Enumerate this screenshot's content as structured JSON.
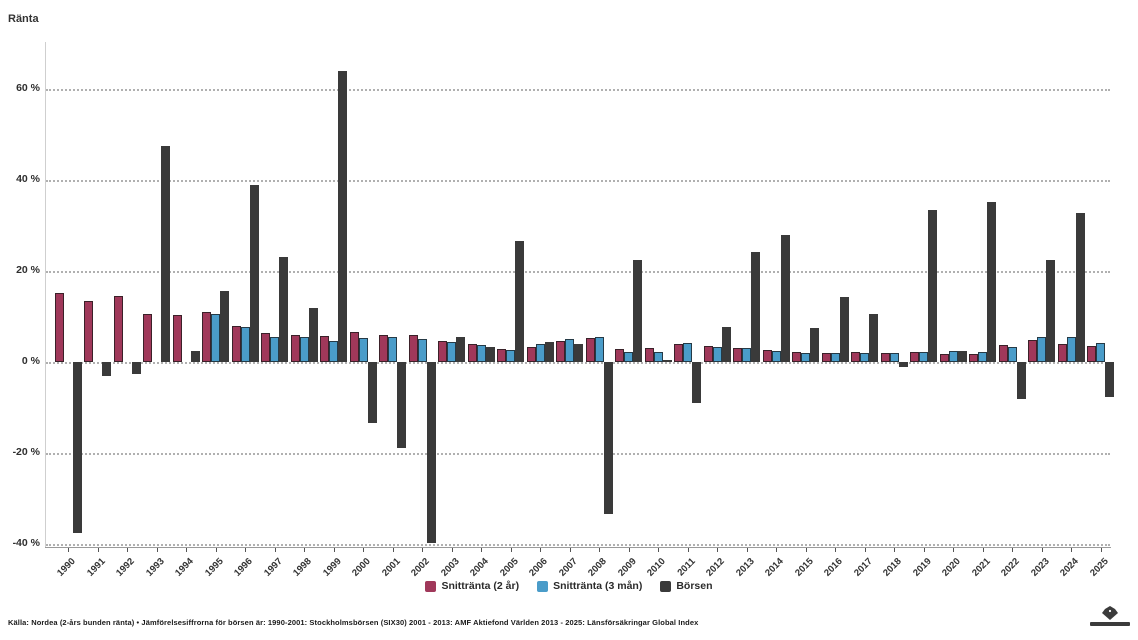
{
  "axis_title": "Ränta",
  "y_axis": {
    "ticks": [
      {
        "label": "60 %",
        "value": 60
      },
      {
        "label": "40 %",
        "value": 40
      },
      {
        "label": "20 %",
        "value": 20
      },
      {
        "label": "0 %",
        "value": 0
      },
      {
        "label": "-20 %",
        "value": -20
      },
      {
        "label": "-40 %",
        "value": -40
      }
    ]
  },
  "chart_data": {
    "type": "bar",
    "title": "",
    "xlabel": "",
    "ylabel": "Ränta",
    "ylim": [
      -40,
      70
    ],
    "grid": true,
    "legend_position": "bottom",
    "categories": [
      "1990",
      "1991",
      "1992",
      "1993",
      "1994",
      "1995",
      "1996",
      "1997",
      "1998",
      "1999",
      "2000",
      "2001",
      "2002",
      "2003",
      "2004",
      "2005",
      "2006",
      "2007",
      "2008",
      "2009",
      "2010",
      "2011",
      "2012",
      "2013",
      "2014",
      "2015",
      "2016",
      "2017",
      "2018",
      "2019",
      "2020",
      "2021",
      "2022",
      "2023",
      "2024",
      "2025"
    ],
    "series": [
      {
        "name": "Snittränta (2 år)",
        "color": "#a0385a",
        "values": [
          15.2,
          13.3,
          14.4,
          10.5,
          10.3,
          11.0,
          8.0,
          6.4,
          5.9,
          5.8,
          6.5,
          5.9,
          6.0,
          4.6,
          4.0,
          2.9,
          3.4,
          4.7,
          5.3,
          2.9,
          3.1,
          4.0,
          3.6,
          3.1,
          2.6,
          2.1,
          2.0,
          2.1,
          1.9,
          2.2,
          1.8,
          1.7,
          3.7,
          4.8,
          4.0,
          3.6
        ]
      },
      {
        "name": "Snittränta (3 mån)",
        "color": "#4a9cc9",
        "values": [
          null,
          null,
          null,
          null,
          null,
          10.5,
          7.8,
          5.6,
          5.5,
          4.6,
          5.3,
          5.5,
          5.1,
          4.5,
          3.7,
          2.6,
          4.0,
          5.0,
          5.6,
          2.1,
          2.3,
          4.2,
          3.3,
          3.1,
          2.5,
          2.0,
          2.0,
          2.0,
          1.9,
          2.2,
          2.4,
          2.3,
          3.2,
          5.6,
          5.5,
          4.2
        ]
      },
      {
        "name": "Börsen",
        "color": "#3a3a3a",
        "values": [
          -37.6,
          -3.0,
          -2.6,
          47.5,
          2.4,
          15.6,
          39.0,
          23.0,
          11.8,
          64.0,
          -13.5,
          -18.8,
          -39.8,
          5.4,
          3.3,
          26.7,
          4.5,
          4.0,
          -33.4,
          22.4,
          0.4,
          -9.1,
          7.8,
          24.2,
          27.9,
          7.5,
          14.2,
          10.5,
          -1.2,
          33.3,
          2.4,
          35.2,
          -8.2,
          22.4,
          32.7,
          -7.6
        ]
      }
    ]
  },
  "footer": {
    "source_text": "Källa: Nordea (2-års bunden ränta) • Jämförelsesiffrorna för börsen är: 1990-2001: Stockholmsbörsen (SIX30) 2001 - 2013: AMF Aktiefond Världen 2013 - 2025: Länsförsäkringar Global Index"
  }
}
